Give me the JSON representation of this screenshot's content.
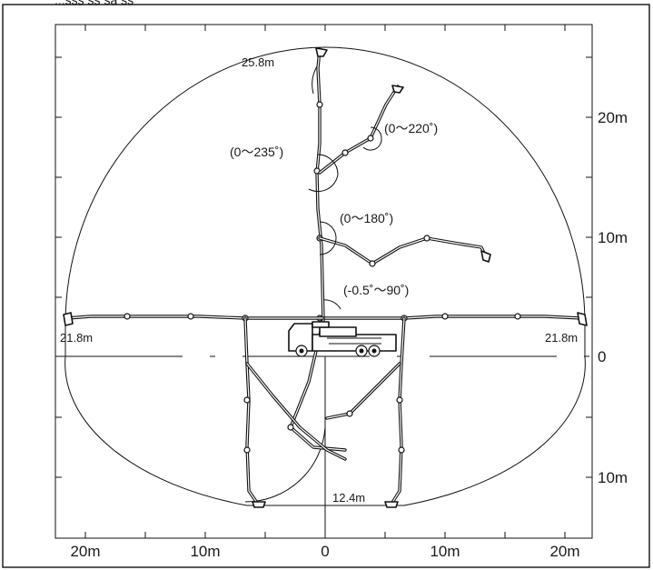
{
  "header": {
    "caption_fragment": "...sss ss sa ss"
  },
  "axes": {
    "bottom_ticks": [
      "20m",
      "10m",
      "0",
      "10m",
      "20m"
    ],
    "right_ticks": [
      "20m",
      "10m",
      "0",
      "10m"
    ]
  },
  "dimensions": {
    "max_vertical_reach": "25.8m",
    "horizontal_reach_left": "21.8m",
    "horizontal_reach_right": "21.8m",
    "max_depth_radius": "12.4m"
  },
  "angles": {
    "boom1": "(-0.5˚～90˚)",
    "boom2": "(0～180˚)",
    "boom3": "(0～235˚)",
    "boom4": "(0～220˚)"
  }
}
